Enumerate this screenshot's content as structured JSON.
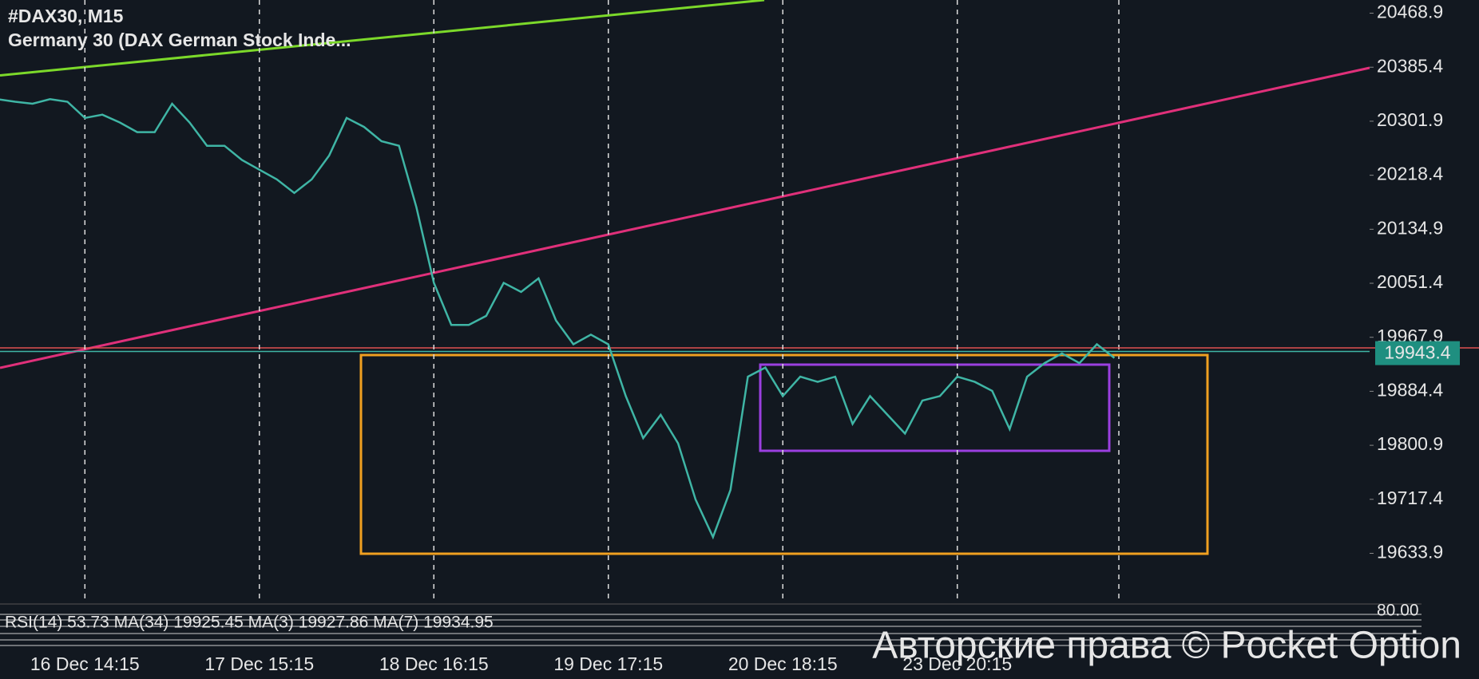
{
  "chart_data": {
    "type": "line",
    "title": "#DAX30, M15",
    "subtitle": "Germany 30 (DAX German Stock Inde...",
    "categories": [
      null,
      null,
      null,
      null,
      null,
      "16 Dec 14:15",
      null,
      null,
      null,
      null,
      null,
      null,
      null,
      null,
      null,
      "17 Dec 15:15",
      null,
      null,
      null,
      null,
      null,
      null,
      null,
      null,
      null,
      "18 Dec 16:15",
      null,
      null,
      null,
      null,
      null,
      null,
      null,
      null,
      null,
      "19 Dec 17:15",
      null,
      null,
      null,
      null,
      null,
      null,
      null,
      null,
      null,
      "20 Dec 18:15",
      null,
      null,
      null,
      null,
      null,
      null,
      null,
      null,
      null,
      "23 Dec 20:15",
      null,
      null,
      null,
      null,
      null,
      null,
      null,
      null,
      null
    ],
    "values": [
      20336,
      20332,
      20329,
      20336,
      20332,
      20307,
      20312,
      20300,
      20285,
      20285,
      20329,
      20300,
      20264,
      20264,
      20242,
      20227,
      20212,
      20191,
      20212,
      20249,
      20307,
      20293,
      20271,
      20264,
      20169,
      20052,
      19987,
      19987,
      20001,
      20052,
      20038,
      20059,
      19994,
      19957,
      19972,
      19957,
      19877,
      19812,
      19848,
      19804,
      19717,
      19659,
      19732,
      19907,
      19921,
      19877,
      19907,
      19899,
      19907,
      19834,
      19877,
      19848,
      19819,
      19870,
      19877,
      19907,
      19899,
      19885,
      19826,
      19907,
      19928,
      19943,
      19928,
      19957,
      19936
    ],
    "color": "#3fb5a5",
    "ylim": [
      20489.3,
      19556.8
    ],
    "yticks": [
      20468.9,
      20385.4,
      20301.9,
      20218.4,
      20134.9,
      20051.4,
      19967.9,
      19884.4,
      19800.9,
      19717.4,
      19633.9
    ],
    "current_price": 19943.4,
    "indicator": "RSI(14) 53.73 MA(34) 19925.45 MA(3) 19927.86 MA(7) 19934.95",
    "indicator_tick": "80.00",
    "watermark": "Авторские права © Pocket Option"
  }
}
